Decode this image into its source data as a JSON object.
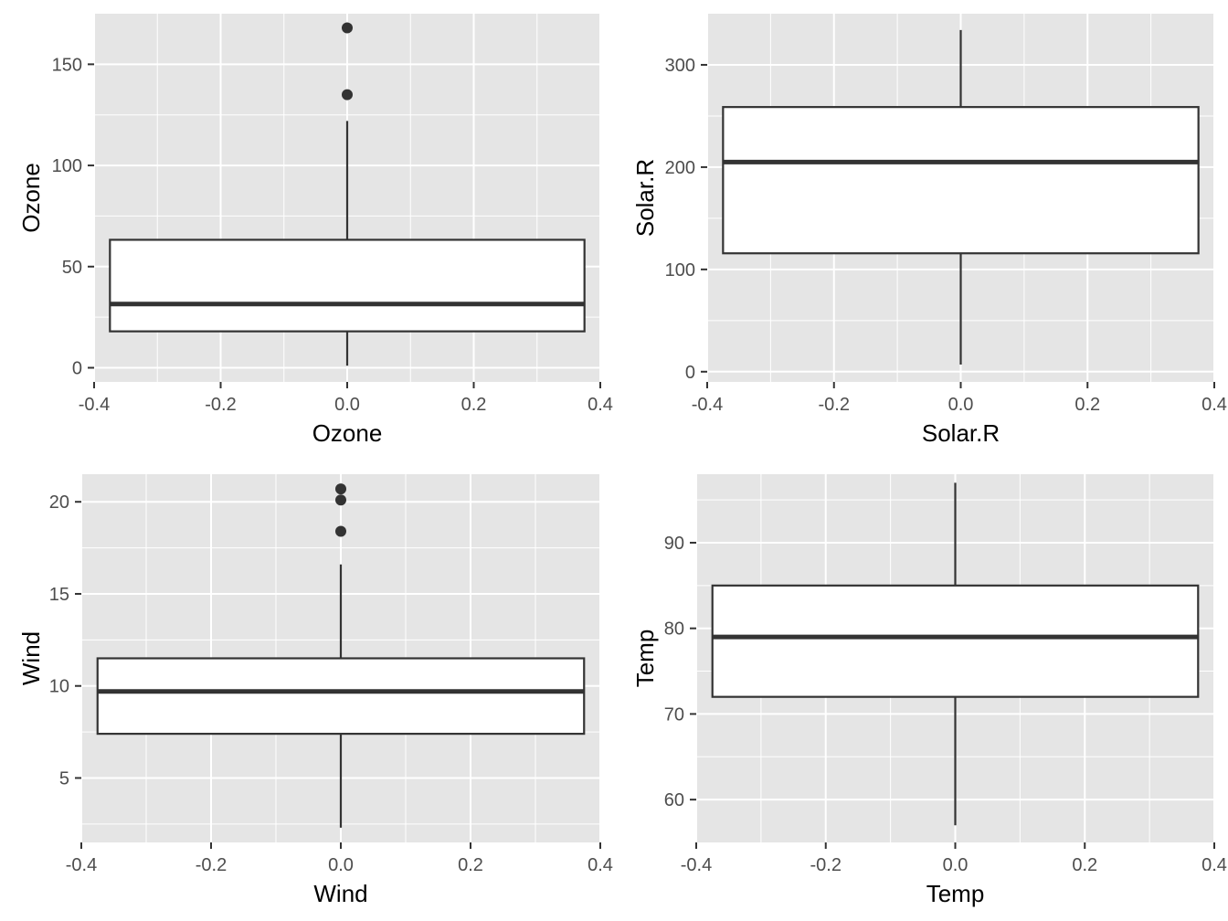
{
  "chart_data": [
    {
      "type": "box",
      "xlabel": "Ozone",
      "ylabel": "Ozone",
      "x_ticks": [
        -0.4,
        -0.2,
        0.0,
        0.2,
        0.4
      ],
      "x_tick_labels": [
        "-0.4",
        "-0.2",
        "0.0",
        "0.2",
        "0.4"
      ],
      "y_ticks": [
        0,
        50,
        100,
        150
      ],
      "y_tick_labels": [
        "0",
        "50",
        "100",
        "150"
      ],
      "xlim": [
        -0.4,
        0.4
      ],
      "ylim": [
        -7,
        175
      ],
      "box": {
        "xmin": -0.375,
        "xmax": 0.375,
        "whisker_low": 1,
        "q1": 18,
        "median": 31.5,
        "q3": 63.25,
        "whisker_high": 122
      },
      "outliers": [
        135,
        168
      ],
      "grid": true
    },
    {
      "type": "box",
      "xlabel": "Solar.R",
      "ylabel": "Solar.R",
      "x_ticks": [
        -0.4,
        -0.2,
        0.0,
        0.2,
        0.4
      ],
      "x_tick_labels": [
        "-0.4",
        "-0.2",
        "0.0",
        "0.2",
        "0.4"
      ],
      "y_ticks": [
        0,
        100,
        200,
        300
      ],
      "y_tick_labels": [
        "0",
        "100",
        "200",
        "300"
      ],
      "xlim": [
        -0.4,
        0.4
      ],
      "ylim": [
        -10,
        350
      ],
      "box": {
        "xmin": -0.375,
        "xmax": 0.375,
        "whisker_low": 7,
        "q1": 115.75,
        "median": 205,
        "q3": 258.75,
        "whisker_high": 334
      },
      "outliers": [],
      "grid": true
    },
    {
      "type": "box",
      "xlabel": "Wind",
      "ylabel": "Wind",
      "x_ticks": [
        -0.4,
        -0.2,
        0.0,
        0.2,
        0.4
      ],
      "x_tick_labels": [
        "-0.4",
        "-0.2",
        "0.0",
        "0.2",
        "0.4"
      ],
      "y_ticks": [
        5,
        10,
        15,
        20
      ],
      "y_tick_labels": [
        "5",
        "10",
        "15",
        "20"
      ],
      "xlim": [
        -0.4,
        0.4
      ],
      "ylim": [
        1.5,
        21.5
      ],
      "box": {
        "xmin": -0.375,
        "xmax": 0.375,
        "whisker_low": 2.3,
        "q1": 7.4,
        "median": 9.7,
        "q3": 11.5,
        "whisker_high": 16.6
      },
      "outliers": [
        18.4,
        20.1,
        20.7
      ],
      "grid": true
    },
    {
      "type": "box",
      "xlabel": "Temp",
      "ylabel": "Temp",
      "x_ticks": [
        -0.4,
        -0.2,
        0.0,
        0.2,
        0.4
      ],
      "x_tick_labels": [
        "-0.4",
        "-0.2",
        "0.0",
        "0.2",
        "0.4"
      ],
      "y_ticks": [
        60,
        70,
        80,
        90
      ],
      "y_tick_labels": [
        "60",
        "70",
        "80",
        "90"
      ],
      "xlim": [
        -0.4,
        0.4
      ],
      "ylim": [
        55,
        98
      ],
      "box": {
        "xmin": -0.375,
        "xmax": 0.375,
        "whisker_low": 57,
        "q1": 72,
        "median": 79,
        "q3": 85,
        "whisker_high": 97
      },
      "outliers": [],
      "grid": true
    }
  ],
  "colors": {
    "panel_background": "#e5e5e5",
    "grid_line": "#ffffff",
    "box_fill": "#ffffff",
    "box_stroke": "#333333",
    "point": "#333333",
    "tick_mark": "#333333",
    "tick_label": "#4d4d4d"
  }
}
